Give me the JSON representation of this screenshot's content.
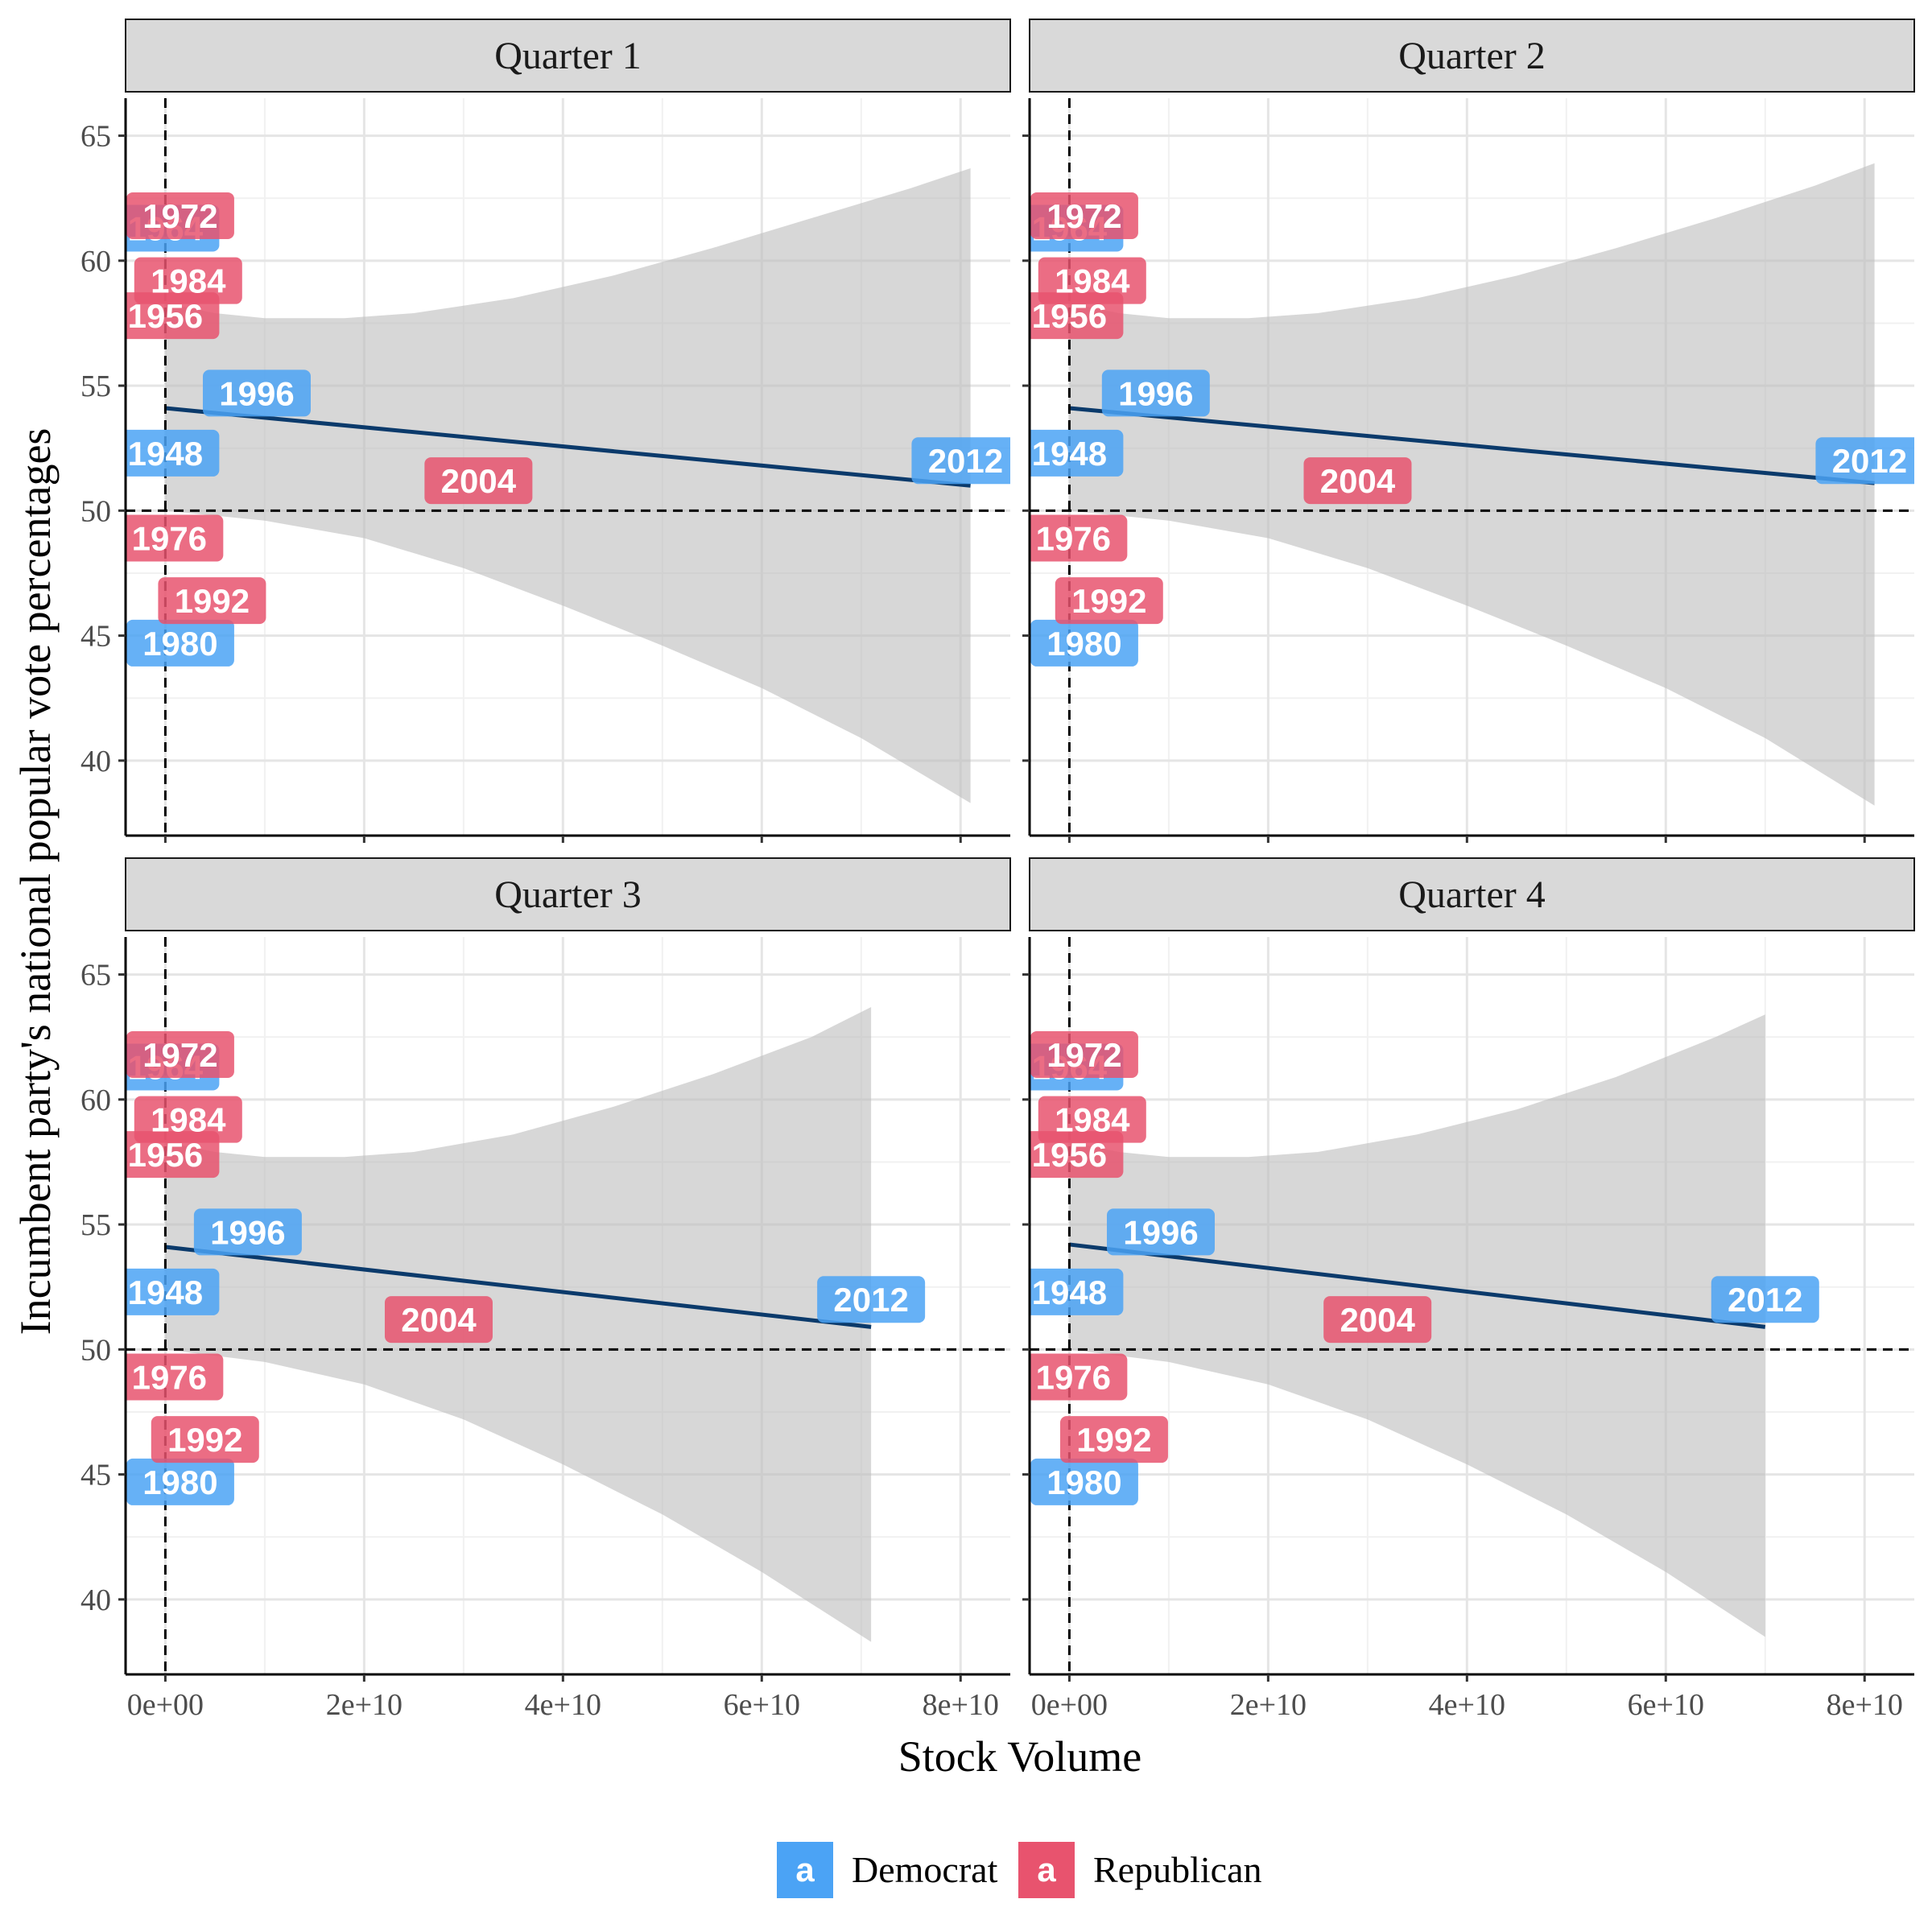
{
  "chart_data": {
    "type": "scatter",
    "facets": [
      "Quarter 1",
      "Quarter 2",
      "Quarter 3",
      "Quarter 4"
    ],
    "xlabel": "Stock Volume",
    "ylabel": "Incumbent party's national popular vote percentages",
    "xlim": [
      -4000000000,
      85000000000
    ],
    "ylim": [
      37,
      66.5
    ],
    "x_ticks": [
      0,
      20000000000,
      40000000000,
      60000000000,
      80000000000
    ],
    "x_tick_labels": [
      "0e+00",
      "2e+10",
      "4e+10",
      "6e+10",
      "8e+10"
    ],
    "y_ticks": [
      40,
      45,
      50,
      55,
      60,
      65
    ],
    "y_tick_labels": [
      "40",
      "45",
      "50",
      "55",
      "60",
      "65"
    ],
    "reference_lines": {
      "x": 0,
      "y": 50,
      "style": "dashed"
    },
    "grid": true,
    "legend": {
      "position": "bottom",
      "key_glyph": "a",
      "entries": [
        {
          "name": "Democrat",
          "color": "#4ba3f5"
        },
        {
          "name": "Republican",
          "color": "#e8536e"
        }
      ]
    },
    "points": [
      {
        "year": "1948",
        "party": "Democrat",
        "y": 52.3,
        "x": [
          0,
          0,
          0,
          0
        ]
      },
      {
        "year": "1956",
        "party": "Republican",
        "y": 57.8,
        "x": [
          0,
          0,
          0,
          0
        ]
      },
      {
        "year": "1964",
        "party": "Democrat",
        "y": 61.3,
        "x": [
          0,
          0,
          0,
          0
        ]
      },
      {
        "year": "1972",
        "party": "Republican",
        "y": 61.8,
        "x": [
          1500000000,
          1500000000,
          1500000000,
          1500000000
        ]
      },
      {
        "year": "1976",
        "party": "Republican",
        "y": 48.9,
        "x": [
          400000000,
          400000000,
          400000000,
          400000000
        ]
      },
      {
        "year": "1980",
        "party": "Democrat",
        "y": 44.7,
        "x": [
          1500000000,
          1500000000,
          1500000000,
          1500000000
        ]
      },
      {
        "year": "1984",
        "party": "Republican",
        "y": 59.2,
        "x": [
          2300000000,
          2300000000,
          2300000000,
          2300000000
        ]
      },
      {
        "year": "1992",
        "party": "Republican",
        "y": 46.4,
        "x": [
          4700000000,
          4000000000,
          4000000000,
          4500000000
        ]
      },
      {
        "year": "1996",
        "party": "Democrat",
        "y": 54.7,
        "x": [
          9200000000,
          8700000000,
          8300000000,
          9200000000
        ]
      },
      {
        "year": "2004",
        "party": "Republican",
        "y": 51.2,
        "x": [
          31500000000,
          29000000000,
          27500000000,
          31000000000
        ]
      },
      {
        "year": "2012",
        "party": "Democrat",
        "y": 52.0,
        "x": [
          80500000000,
          80500000000,
          71000000000,
          70000000000
        ]
      }
    ],
    "fit": [
      {
        "x_end": 81000000000,
        "y_start": 54.1,
        "y_end": 51.0,
        "band_upper": [
          [
            0,
            58.3
          ],
          [
            5000000000,
            57.9
          ],
          [
            10000000000,
            57.7
          ],
          [
            18000000000,
            57.7
          ],
          [
            25000000000,
            57.9
          ],
          [
            35000000000,
            58.5
          ],
          [
            45000000000,
            59.4
          ],
          [
            55000000000,
            60.5
          ],
          [
            65000000000,
            61.7
          ],
          [
            75000000000,
            62.9
          ],
          [
            81000000000,
            63.7
          ]
        ],
        "band_lower": [
          [
            0,
            50.0
          ],
          [
            10000000000,
            49.6
          ],
          [
            20000000000,
            48.9
          ],
          [
            30000000000,
            47.7
          ],
          [
            40000000000,
            46.2
          ],
          [
            50000000000,
            44.6
          ],
          [
            60000000000,
            42.9
          ],
          [
            70000000000,
            40.9
          ],
          [
            81000000000,
            38.3
          ]
        ]
      },
      {
        "x_end": 81000000000,
        "y_start": 54.1,
        "y_end": 51.1,
        "band_upper": [
          [
            0,
            58.3
          ],
          [
            5000000000,
            57.9
          ],
          [
            10000000000,
            57.7
          ],
          [
            18000000000,
            57.7
          ],
          [
            25000000000,
            57.9
          ],
          [
            35000000000,
            58.5
          ],
          [
            45000000000,
            59.4
          ],
          [
            55000000000,
            60.5
          ],
          [
            65000000000,
            61.7
          ],
          [
            75000000000,
            63.0
          ],
          [
            81000000000,
            63.9
          ]
        ],
        "band_lower": [
          [
            0,
            50.0
          ],
          [
            10000000000,
            49.6
          ],
          [
            20000000000,
            48.9
          ],
          [
            30000000000,
            47.7
          ],
          [
            40000000000,
            46.2
          ],
          [
            50000000000,
            44.6
          ],
          [
            60000000000,
            42.9
          ],
          [
            70000000000,
            40.9
          ],
          [
            81000000000,
            38.2
          ]
        ]
      },
      {
        "x_end": 71000000000,
        "y_start": 54.1,
        "y_end": 50.9,
        "band_upper": [
          [
            0,
            58.3
          ],
          [
            5000000000,
            57.9
          ],
          [
            10000000000,
            57.7
          ],
          [
            18000000000,
            57.7
          ],
          [
            25000000000,
            57.9
          ],
          [
            35000000000,
            58.6
          ],
          [
            45000000000,
            59.7
          ],
          [
            55000000000,
            61.0
          ],
          [
            65000000000,
            62.5
          ],
          [
            71000000000,
            63.7
          ]
        ],
        "band_lower": [
          [
            0,
            50.0
          ],
          [
            10000000000,
            49.5
          ],
          [
            20000000000,
            48.6
          ],
          [
            30000000000,
            47.2
          ],
          [
            40000000000,
            45.4
          ],
          [
            50000000000,
            43.4
          ],
          [
            60000000000,
            41.1
          ],
          [
            71000000000,
            38.3
          ]
        ]
      },
      {
        "x_end": 70000000000,
        "y_start": 54.2,
        "y_end": 50.9,
        "band_upper": [
          [
            0,
            58.3
          ],
          [
            5000000000,
            57.9
          ],
          [
            10000000000,
            57.7
          ],
          [
            18000000000,
            57.7
          ],
          [
            25000000000,
            57.9
          ],
          [
            35000000000,
            58.6
          ],
          [
            45000000000,
            59.6
          ],
          [
            55000000000,
            60.9
          ],
          [
            65000000000,
            62.5
          ],
          [
            70000000000,
            63.4
          ]
        ],
        "band_lower": [
          [
            0,
            50.0
          ],
          [
            10000000000,
            49.5
          ],
          [
            20000000000,
            48.6
          ],
          [
            30000000000,
            47.2
          ],
          [
            40000000000,
            45.4
          ],
          [
            50000000000,
            43.4
          ],
          [
            60000000000,
            41.1
          ],
          [
            70000000000,
            38.5
          ]
        ]
      }
    ]
  }
}
